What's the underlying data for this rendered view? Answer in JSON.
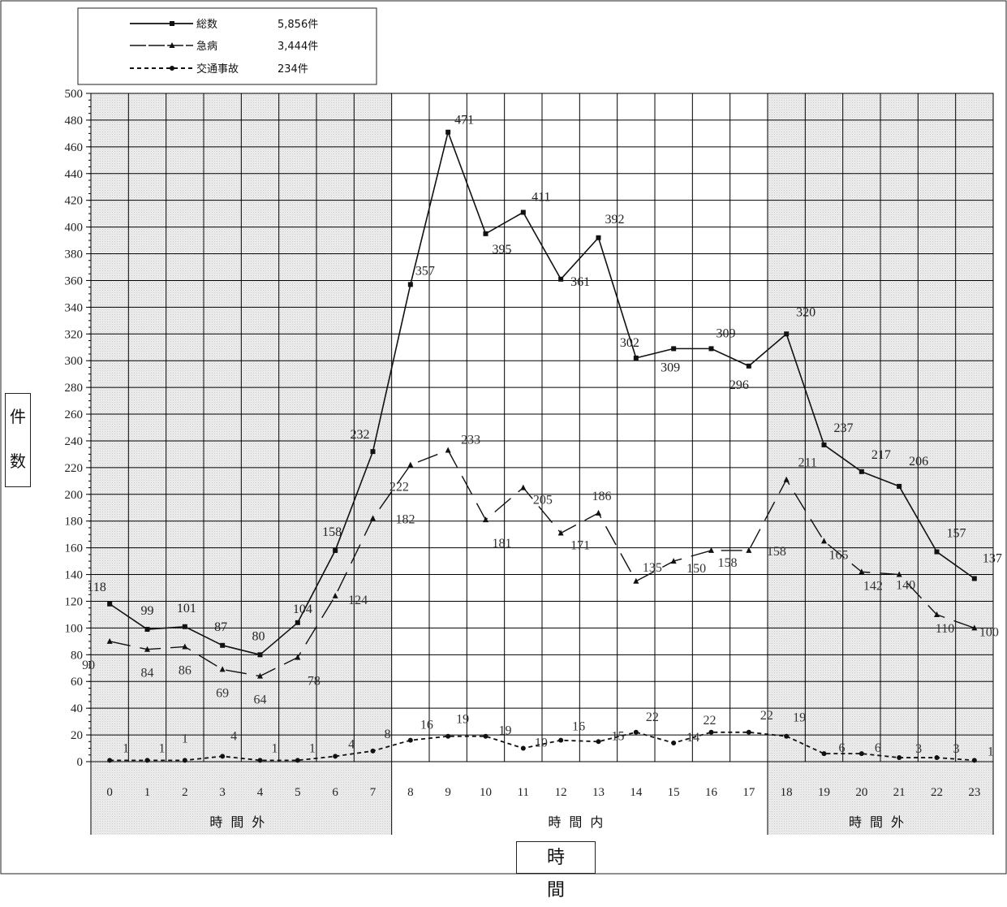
{
  "chart_data": {
    "type": "line",
    "x": [
      "0",
      "1",
      "2",
      "3",
      "4",
      "5",
      "6",
      "7",
      "8",
      "9",
      "10",
      "11",
      "12",
      "13",
      "14",
      "15",
      "16",
      "17",
      "18",
      "19",
      "20",
      "21",
      "22",
      "23"
    ],
    "ylim": [
      0,
      500
    ],
    "ytick_step": 20,
    "ylabel": "件数",
    "xlabel": "時間",
    "grid": true,
    "legend_position": "top-left",
    "periods": [
      {
        "label": "時間外",
        "from": 0,
        "to": 7,
        "shaded": true
      },
      {
        "label": "時間内",
        "from": 8,
        "to": 17,
        "shaded": false
      },
      {
        "label": "時間外",
        "from": 18,
        "to": 23,
        "shaded": true
      }
    ],
    "series": [
      {
        "name": "総数",
        "total": "5,856件",
        "style": "solid",
        "marker": "square",
        "color": "#111111",
        "label_color": "#222222",
        "values": [
          118,
          99,
          101,
          87,
          80,
          104,
          158,
          232,
          357,
          471,
          395,
          411,
          361,
          392,
          302,
          309,
          309,
          296,
          320,
          237,
          217,
          206,
          157,
          137
        ]
      },
      {
        "name": "急病",
        "total": "3,444件",
        "style": "longdash",
        "marker": "triangle",
        "color": "#111111",
        "label_color": "#333333",
        "values": [
          90,
          84,
          86,
          69,
          64,
          78,
          124,
          182,
          222,
          233,
          181,
          205,
          171,
          186,
          135,
          150,
          158,
          158,
          211,
          165,
          142,
          140,
          110,
          100
        ]
      },
      {
        "name": "交通事故",
        "total": "234件",
        "style": "dotted",
        "marker": "circle",
        "color": "#111111",
        "label_color": "#333333",
        "values": [
          1,
          1,
          1,
          4,
          1,
          1,
          4,
          8,
          16,
          19,
          19,
          10,
          16,
          15,
          22,
          14,
          22,
          22,
          19,
          6,
          6,
          3,
          3,
          1
        ]
      }
    ]
  }
}
